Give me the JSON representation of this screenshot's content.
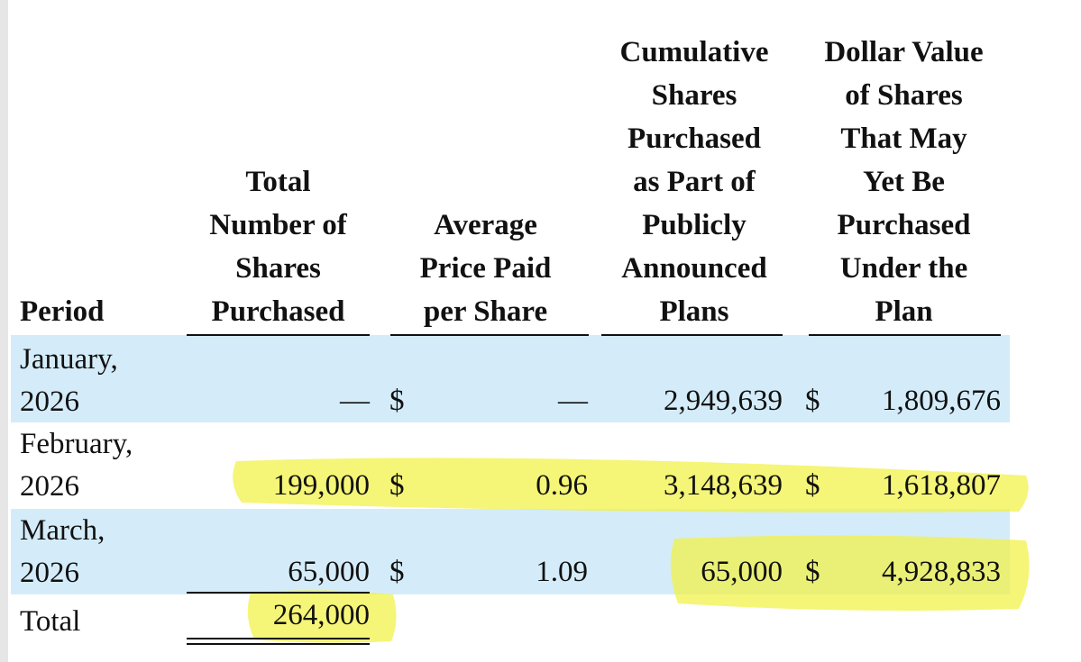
{
  "table": {
    "headers": [
      [
        "Period"
      ],
      [
        "Total",
        "Number of",
        "Shares",
        "Purchased"
      ],
      [
        "Average",
        "Price Paid",
        "per Share"
      ],
      [
        "Cumulative",
        "Shares",
        "Purchased",
        "as Part of",
        "Publicly",
        "Announced",
        "Plans"
      ],
      [
        "Dollar Value",
        "of Shares",
        "That May",
        "Yet Be",
        "Purchased",
        "Under the",
        "Plan"
      ]
    ],
    "rows": [
      {
        "period": "January, 2026",
        "shares": "—",
        "price_sign": "$",
        "price": "—",
        "cumulative": "2,949,639",
        "value_sign": "$",
        "value": "1,809,676"
      },
      {
        "period": "February, 2026",
        "shares": "199,000",
        "price_sign": "$",
        "price": "0.96",
        "cumulative": "3,148,639",
        "value_sign": "$",
        "value": "1,618,807"
      },
      {
        "period": "March, 2026",
        "shares": "65,000",
        "price_sign": "$",
        "price": "1.09",
        "cumulative": "65,000",
        "value_sign": "$",
        "value": "4,928,833"
      }
    ],
    "total": {
      "label": "Total",
      "shares": "264,000"
    }
  }
}
